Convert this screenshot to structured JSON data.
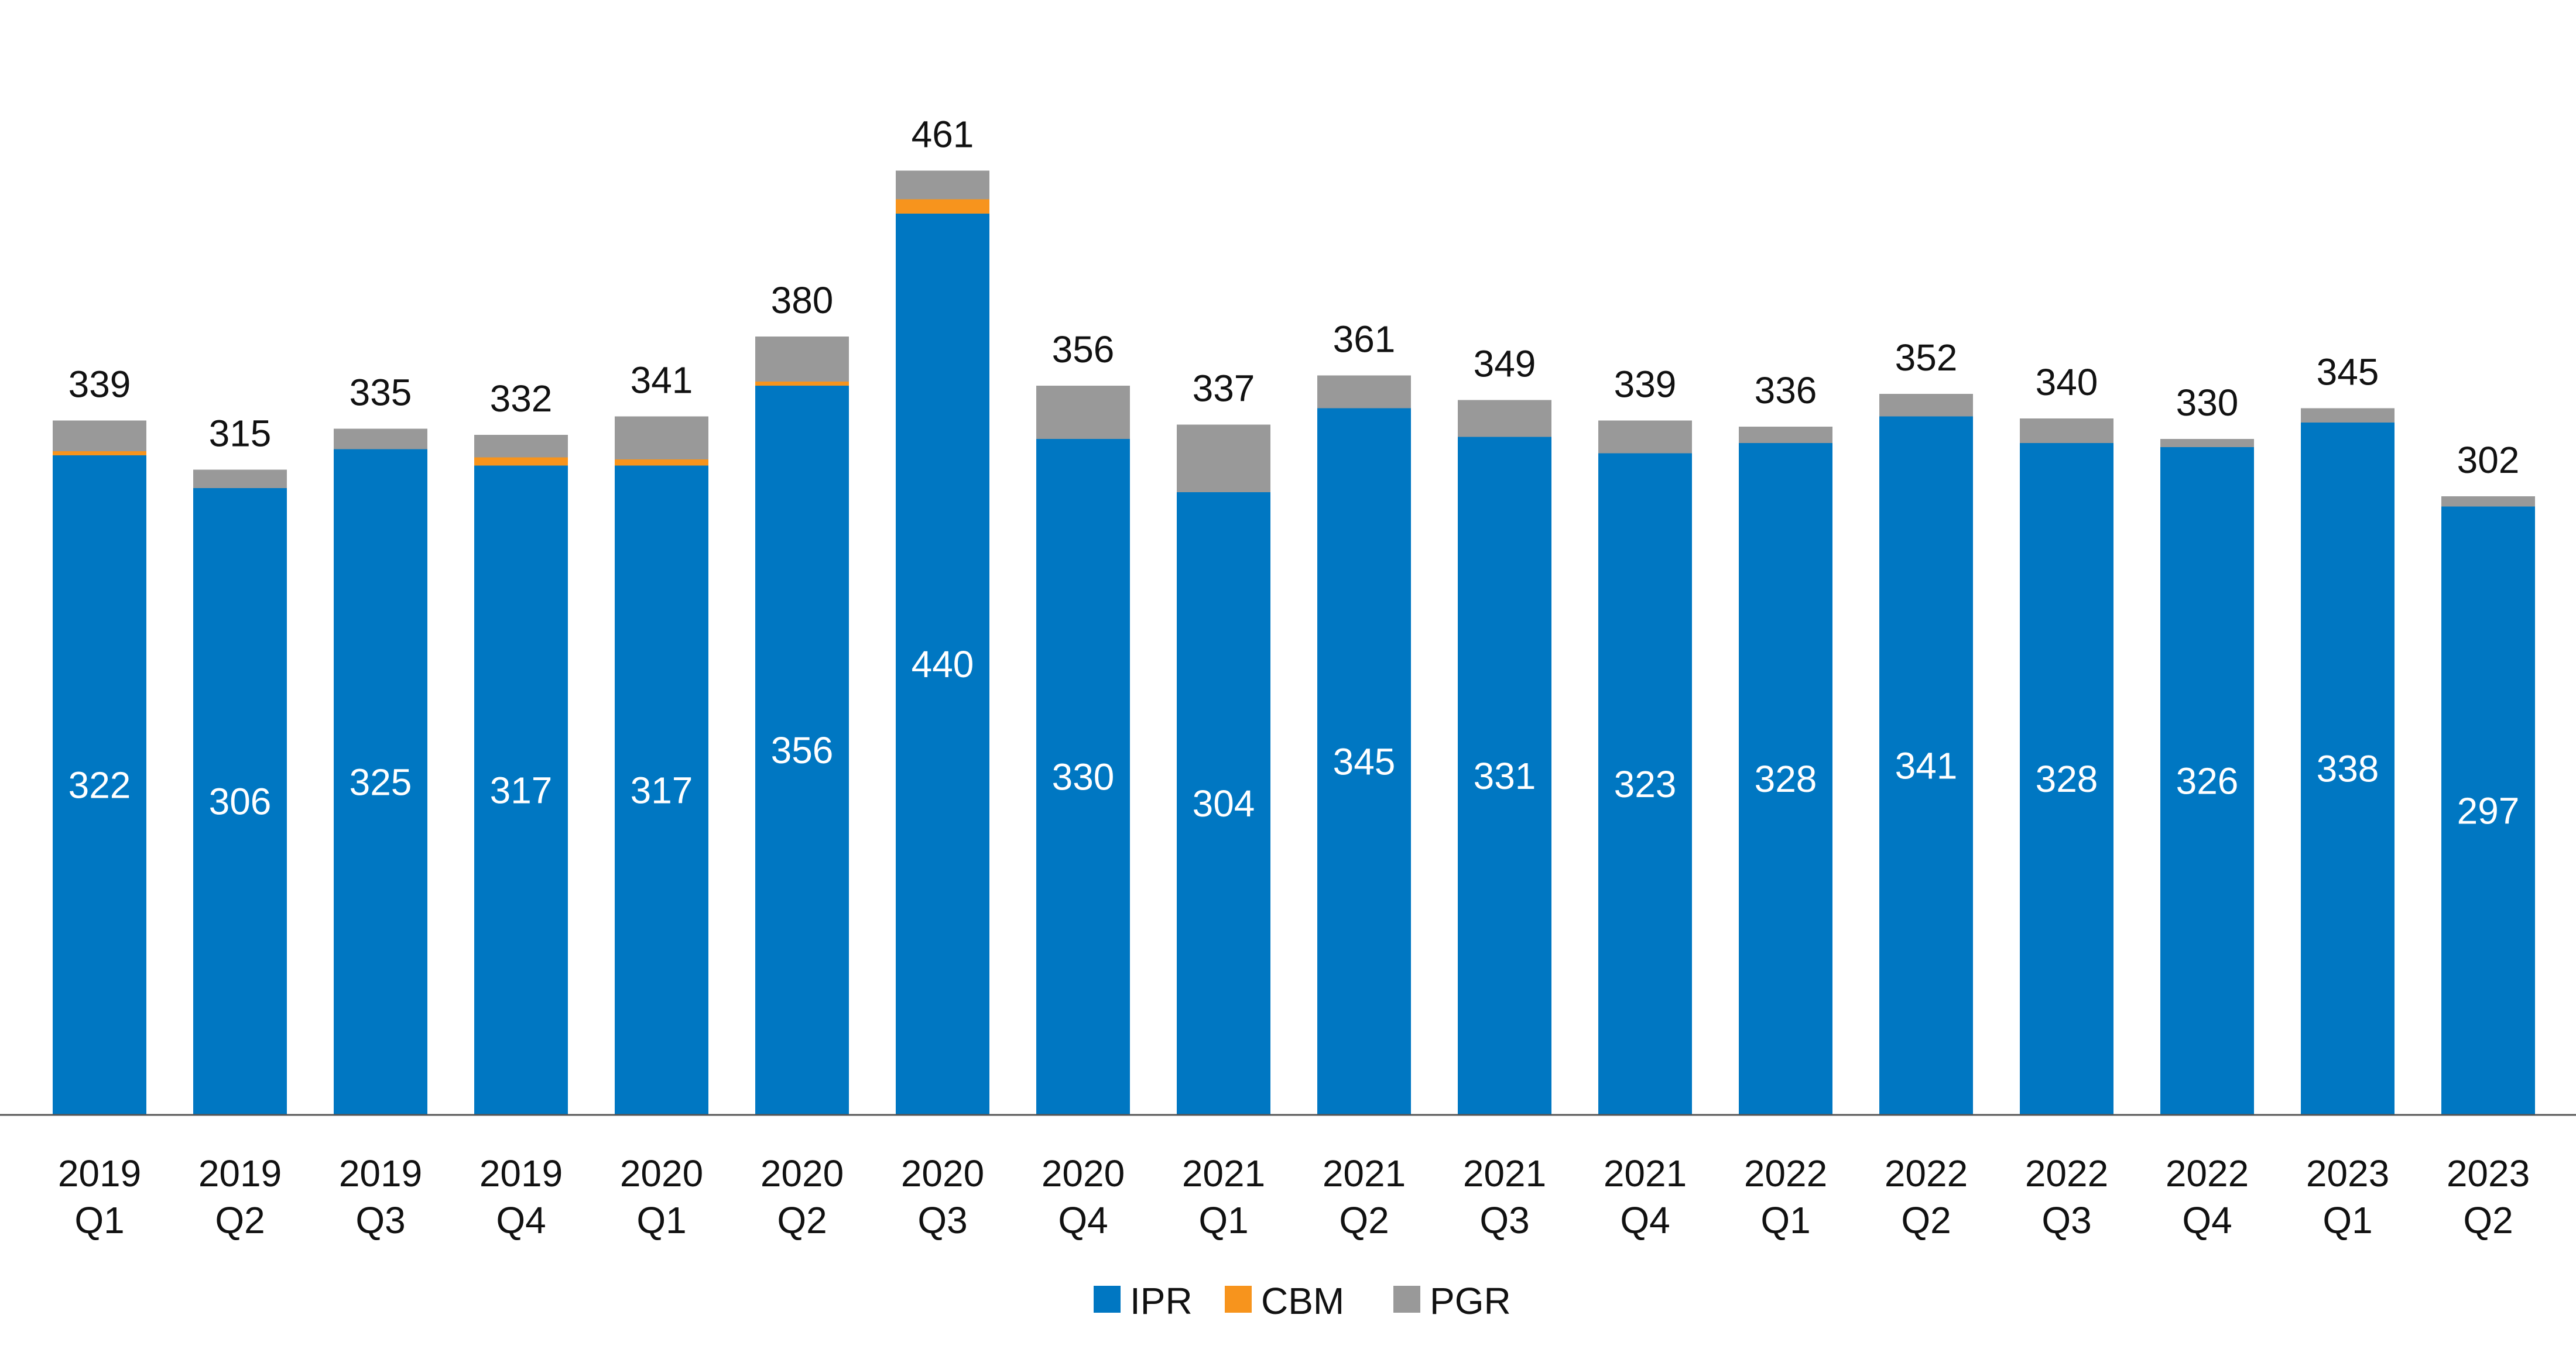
{
  "chart_data": {
    "type": "bar",
    "stacked": true,
    "title": "",
    "xlabel": "",
    "ylabel": "",
    "ylim": [
      0,
      470
    ],
    "grid": false,
    "legend": "bottom",
    "categories": [
      [
        "2019",
        "Q1"
      ],
      [
        "2019",
        "Q2"
      ],
      [
        "2019",
        "Q3"
      ],
      [
        "2019",
        "Q4"
      ],
      [
        "2020",
        "Q1"
      ],
      [
        "2020",
        "Q2"
      ],
      [
        "2020",
        "Q3"
      ],
      [
        "2020",
        "Q4"
      ],
      [
        "2021",
        "Q1"
      ],
      [
        "2021",
        "Q2"
      ],
      [
        "2021",
        "Q3"
      ],
      [
        "2021",
        "Q4"
      ],
      [
        "2022",
        "Q1"
      ],
      [
        "2022",
        "Q2"
      ],
      [
        "2022",
        "Q3"
      ],
      [
        "2022",
        "Q4"
      ],
      [
        "2023",
        "Q1"
      ],
      [
        "2023",
        "Q2"
      ]
    ],
    "series": [
      {
        "name": "IPR",
        "color": "#0077C2",
        "values": [
          322,
          306,
          325,
          317,
          317,
          356,
          440,
          330,
          304,
          345,
          331,
          323,
          328,
          341,
          328,
          326,
          338,
          297
        ]
      },
      {
        "name": "CBM",
        "color": "#F7941D",
        "values": [
          2,
          0,
          0,
          4,
          3,
          2,
          7,
          0,
          0,
          0,
          0,
          0,
          0,
          0,
          0,
          0,
          0,
          0
        ]
      },
      {
        "name": "PGR",
        "color": "#999999",
        "values": [
          15,
          9,
          10,
          11,
          21,
          22,
          14,
          26,
          33,
          16,
          18,
          16,
          8,
          11,
          12,
          4,
          7,
          5
        ]
      }
    ],
    "totals": [
      339,
      315,
      335,
      332,
      341,
      380,
      461,
      356,
      337,
      361,
      349,
      339,
      336,
      352,
      340,
      330,
      345,
      302
    ]
  }
}
